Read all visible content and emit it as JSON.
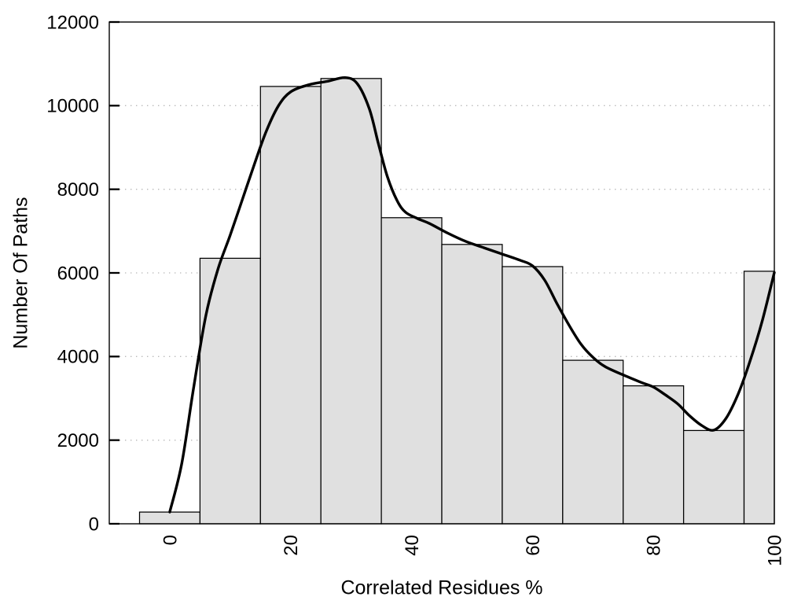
{
  "chart_data": {
    "type": "bar",
    "subtype": "histogram-with-smoothed-curve",
    "title": "",
    "xlabel": "Correlated Residues %",
    "ylabel": "Number Of Paths",
    "xlim": [
      -10,
      100
    ],
    "ylim": [
      0,
      12000
    ],
    "x_tick_values": [
      0,
      20,
      40,
      60,
      80,
      100
    ],
    "x_tick_labels": [
      "0",
      "20",
      "40",
      "60",
      "80",
      "100"
    ],
    "x_tick_rotation_deg": -90,
    "y_tick_values": [
      0,
      2000,
      4000,
      6000,
      8000,
      10000,
      12000
    ],
    "y_tick_labels": [
      "0",
      "2000",
      "4000",
      "6000",
      "8000",
      "10000",
      "12000"
    ],
    "grid": {
      "horizontal_dotted": true
    },
    "legend": null,
    "colors": {
      "bar_fill": "#e0e0e0",
      "bar_edge": "#000000",
      "curve": "#000000",
      "axis": "#000000",
      "grid": "#b8b8b8",
      "text": "#000000",
      "background": "#ffffff"
    },
    "bins": [
      {
        "x0": -5,
        "x1": 5,
        "count": 280
      },
      {
        "x0": 5,
        "x1": 15,
        "count": 6350
      },
      {
        "x0": 15,
        "x1": 25,
        "count": 10460
      },
      {
        "x0": 25,
        "x1": 35,
        "count": 10650
      },
      {
        "x0": 35,
        "x1": 45,
        "count": 7320
      },
      {
        "x0": 45,
        "x1": 55,
        "count": 6680
      },
      {
        "x0": 55,
        "x1": 65,
        "count": 6150
      },
      {
        "x0": 65,
        "x1": 75,
        "count": 3910
      },
      {
        "x0": 75,
        "x1": 85,
        "count": 3300
      },
      {
        "x0": 85,
        "x1": 95,
        "count": 2230
      },
      {
        "x0": 95,
        "x1": 100,
        "count": 6040
      }
    ],
    "curve_series": {
      "name": "smoothed-frequency-curve",
      "points": [
        [
          0,
          280
        ],
        [
          2,
          1450
        ],
        [
          4,
          3300
        ],
        [
          6,
          5000
        ],
        [
          8,
          6100
        ],
        [
          10,
          6900
        ],
        [
          12,
          7750
        ],
        [
          14,
          8600
        ],
        [
          16,
          9400
        ],
        [
          18,
          10000
        ],
        [
          20,
          10330
        ],
        [
          23,
          10500
        ],
        [
          26,
          10580
        ],
        [
          29,
          10670
        ],
        [
          31,
          10530
        ],
        [
          33,
          9930
        ],
        [
          34.5,
          9100
        ],
        [
          36,
          8300
        ],
        [
          37.6,
          7730
        ],
        [
          39,
          7450
        ],
        [
          41,
          7300
        ],
        [
          43,
          7180
        ],
        [
          46,
          6950
        ],
        [
          49,
          6750
        ],
        [
          52,
          6600
        ],
        [
          55,
          6450
        ],
        [
          58,
          6300
        ],
        [
          60,
          6170
        ],
        [
          62,
          5830
        ],
        [
          64,
          5280
        ],
        [
          66,
          4760
        ],
        [
          68,
          4300
        ],
        [
          70,
          3980
        ],
        [
          72,
          3760
        ],
        [
          75,
          3560
        ],
        [
          78,
          3380
        ],
        [
          80,
          3270
        ],
        [
          82,
          3080
        ],
        [
          84,
          2870
        ],
        [
          86,
          2580
        ],
        [
          88,
          2350
        ],
        [
          90,
          2240
        ],
        [
          92,
          2520
        ],
        [
          94,
          3100
        ],
        [
          96,
          3900
        ],
        [
          98,
          4850
        ],
        [
          100,
          6010
        ]
      ]
    }
  }
}
